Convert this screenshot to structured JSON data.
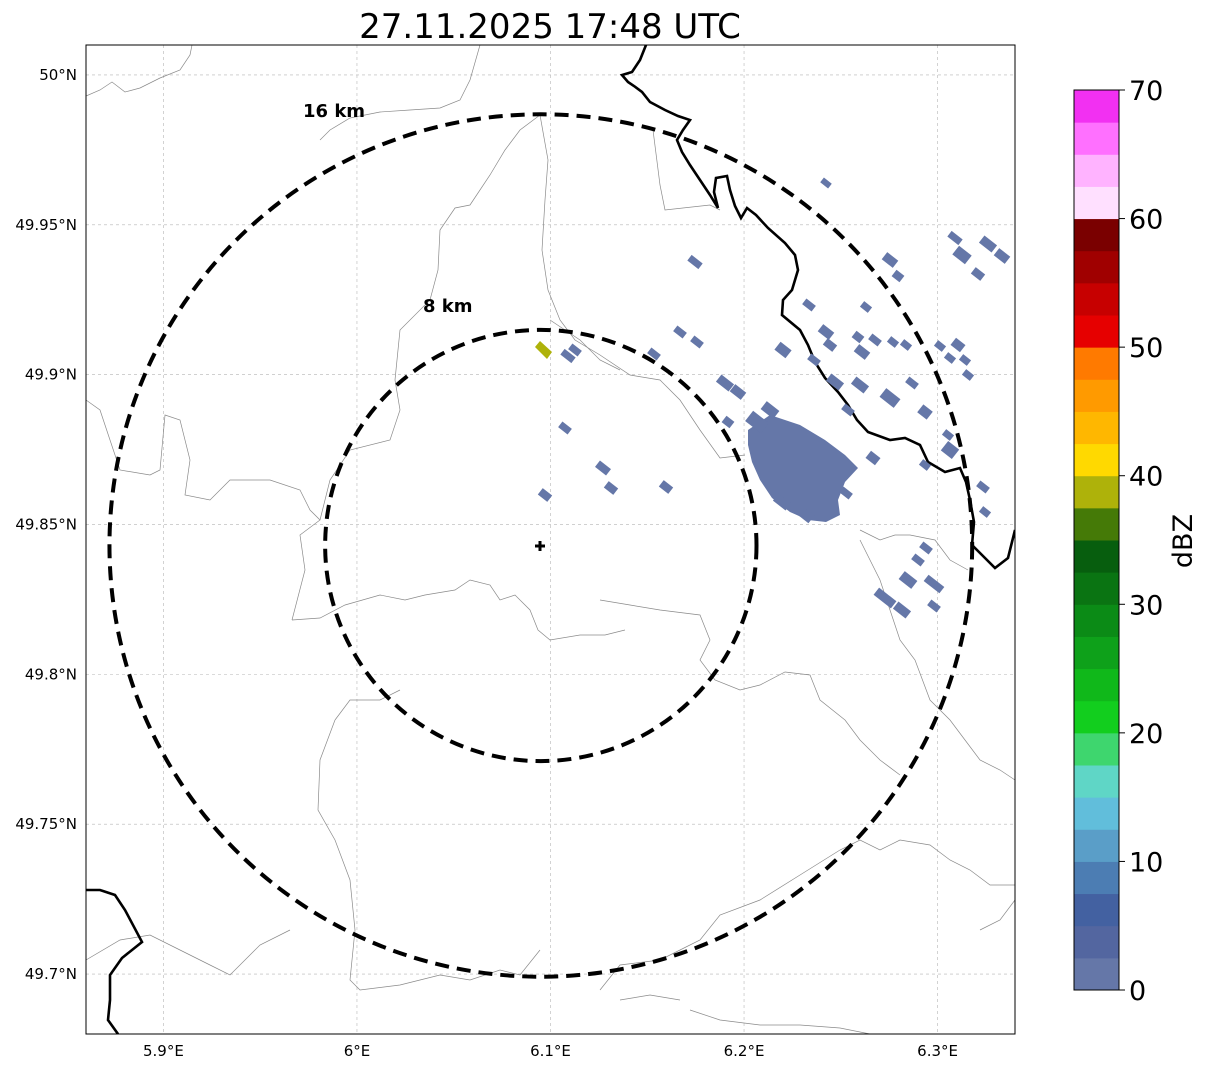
{
  "title": "27.11.2025 17:48 UTC",
  "map": {
    "lon_range": [
      5.86,
      6.34
    ],
    "lat_range": [
      49.68,
      50.01
    ],
    "x_ticks": [
      {
        "value": 5.9,
        "label": "5.9°E"
      },
      {
        "value": 6.0,
        "label": "6°E"
      },
      {
        "value": 6.1,
        "label": "6.1°E"
      },
      {
        "value": 6.2,
        "label": "6.2°E"
      },
      {
        "value": 6.3,
        "label": "6.3°E"
      }
    ],
    "y_ticks": [
      {
        "value": 50.0,
        "label": "50°N"
      },
      {
        "value": 49.95,
        "label": "49.95°N"
      },
      {
        "value": 49.9,
        "label": "49.9°N"
      },
      {
        "value": 49.85,
        "label": "49.85°N"
      },
      {
        "value": 49.8,
        "label": "49.8°N"
      },
      {
        "value": 49.75,
        "label": "49.75°N"
      },
      {
        "value": 49.7,
        "label": "49.7°N"
      }
    ],
    "grid": true,
    "radar_site": {
      "lon": 6.095,
      "lat": 49.843
    },
    "rings": [
      {
        "label": "8 km",
        "radius_km": 8
      },
      {
        "label": "16 km",
        "radius_km": 16
      }
    ],
    "echo_color": "#6577a8",
    "echo_color_strong": "#aeb20a"
  },
  "colorbar": {
    "label": "dBZ",
    "min": 0,
    "max": 70,
    "step": 2.5,
    "tick_labels": [
      "0",
      "10",
      "20",
      "30",
      "40",
      "50",
      "60",
      "70"
    ],
    "colors": [
      "#6577a8",
      "#5366a0",
      "#4361a1",
      "#4c7db3",
      "#5a9ec8",
      "#61bedb",
      "#5fd6c6",
      "#3ed66e",
      "#12ce1e",
      "#10b81a",
      "#0ea11a",
      "#0b8b16",
      "#0a7412",
      "#075e0e",
      "#457a07",
      "#aeb20a",
      "#ffd900",
      "#ffb700",
      "#ff9a00",
      "#ff7a00",
      "#e60000",
      "#c70000",
      "#a00000",
      "#7a0000",
      "#ffe0ff",
      "#ffb3ff",
      "#ff70ff",
      "#f230f2"
    ]
  }
}
